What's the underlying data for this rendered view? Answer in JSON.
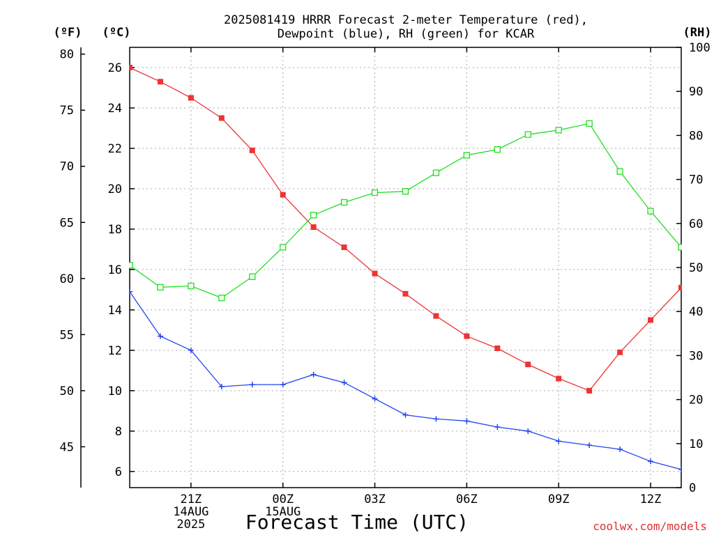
{
  "chart_data": {
    "type": "line",
    "title": "2025081419 HRRR Forecast 2-meter Temperature (red),",
    "subtitle": "Dewpoint (blue), RH (green) for KCAR",
    "xlabel": "Forecast Time (UTC)",
    "credit": "coolwx.com/models",
    "unit_labels": {
      "fahrenheit": "(ºF)",
      "celsius": "(ºC)",
      "rh": "(RH)"
    },
    "x_hours": [
      19,
      20,
      21,
      22,
      23,
      24,
      25,
      26,
      27,
      28,
      29,
      30,
      31,
      32,
      33,
      34,
      35,
      36,
      37
    ],
    "xlim": [
      19,
      37
    ],
    "x_ticks": [
      {
        "x": 21,
        "lines": [
          "21Z",
          "14AUG",
          "2025"
        ]
      },
      {
        "x": 24,
        "lines": [
          "00Z",
          "15AUG"
        ]
      },
      {
        "x": 27,
        "lines": [
          "03Z"
        ]
      },
      {
        "x": 30,
        "lines": [
          "06Z"
        ]
      },
      {
        "x": 33,
        "lines": [
          "09Z"
        ]
      },
      {
        "x": 36,
        "lines": [
          "12Z"
        ]
      }
    ],
    "celsius_axis": {
      "range": [
        5.2,
        27.0
      ],
      "ticks": [
        6,
        8,
        10,
        12,
        14,
        16,
        18,
        20,
        22,
        24,
        26
      ]
    },
    "fahrenheit_axis": {
      "ticks": [
        45,
        50,
        55,
        60,
        65,
        70,
        75,
        80
      ]
    },
    "rh_axis": {
      "range": [
        0,
        100
      ],
      "ticks": [
        0,
        10,
        20,
        30,
        40,
        50,
        60,
        70,
        80,
        90,
        100
      ]
    },
    "grid": true,
    "series": [
      {
        "key": "temperature",
        "axis": "celsius",
        "color": "#ee3333",
        "marker": "filled-square",
        "values": [
          26.0,
          25.3,
          24.5,
          23.5,
          21.9,
          19.7,
          18.1,
          17.1,
          15.8,
          14.8,
          13.7,
          12.7,
          12.1,
          11.3,
          10.6,
          10.0,
          11.9,
          13.5,
          15.1
        ]
      },
      {
        "key": "dewpoint",
        "axis": "celsius",
        "color": "#2244ee",
        "marker": "plus",
        "values": [
          14.9,
          12.7,
          12.0,
          10.2,
          10.3,
          10.3,
          10.8,
          10.4,
          9.6,
          8.8,
          8.6,
          8.5,
          8.2,
          8.0,
          7.5,
          7.3,
          7.1,
          6.5,
          6.1
        ]
      },
      {
        "key": "rh",
        "axis": "rh",
        "color": "#22dd22",
        "marker": "open-square",
        "values": [
          50.5,
          45.5,
          45.8,
          43.1,
          47.9,
          54.6,
          61.9,
          64.8,
          67.0,
          67.3,
          71.5,
          75.5,
          76.8,
          80.2,
          81.2,
          82.7,
          71.8,
          62.8,
          54.6
        ]
      }
    ]
  }
}
